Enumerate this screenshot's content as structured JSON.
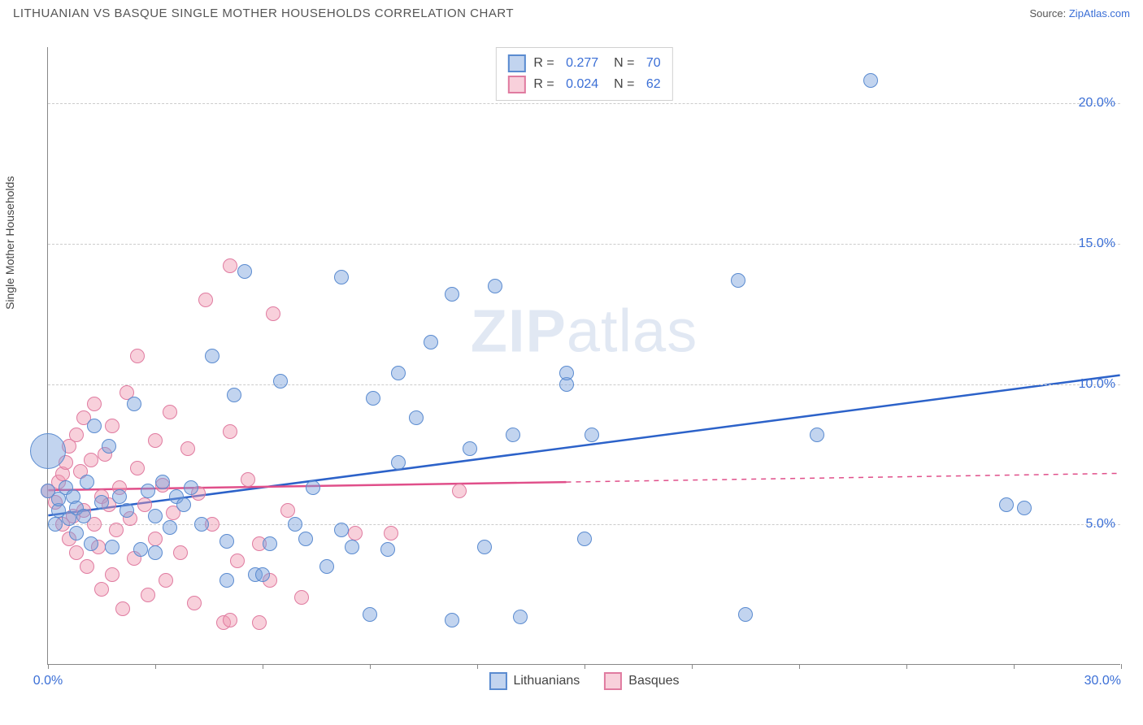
{
  "header": {
    "title": "LITHUANIAN VS BASQUE SINGLE MOTHER HOUSEHOLDS CORRELATION CHART",
    "source_prefix": "Source: ",
    "source_link": "ZipAtlas.com"
  },
  "chart": {
    "type": "scatter",
    "ylabel": "Single Mother Households",
    "watermark": {
      "bold": "ZIP",
      "rest": "atlas"
    },
    "background_color": "#ffffff",
    "grid_color": "#cccccc",
    "axis_color": "#888888",
    "xlim": [
      0,
      30
    ],
    "ylim": [
      0,
      22
    ],
    "x_ticks": [
      0,
      3,
      6,
      9,
      12,
      15,
      18,
      21,
      24,
      27,
      30
    ],
    "x_tick_labels": {
      "0": "0.0%",
      "30": "30.0%"
    },
    "y_gridlines": [
      5,
      10,
      15,
      20
    ],
    "y_tick_labels": {
      "5": "5.0%",
      "10": "10.0%",
      "15": "15.0%",
      "20": "20.0%"
    },
    "label_color": "#3b6fd6",
    "label_fontsize": 16,
    "title_fontsize": 15,
    "marker_radius": 9,
    "marker_stroke_width": 1.5,
    "marker_opacity": 0.55,
    "series": {
      "lithuanians": {
        "label": "Lithuanians",
        "color_fill": "rgba(120,160,220,0.45)",
        "color_stroke": "#5a8bd0",
        "R": "0.277",
        "N": "70",
        "regression": {
          "x1": 0,
          "y1": 5.3,
          "x2": 30,
          "y2": 10.3,
          "solid_until_x": 30,
          "color": "#2c62c9",
          "width": 2.5
        },
        "points": [
          [
            0.0,
            7.6,
            22
          ],
          [
            0.0,
            6.2
          ],
          [
            0.2,
            5.0
          ],
          [
            0.3,
            5.5
          ],
          [
            0.3,
            5.9
          ],
          [
            0.5,
            6.3
          ],
          [
            0.6,
            5.2
          ],
          [
            0.7,
            6.0
          ],
          [
            0.8,
            4.7
          ],
          [
            0.8,
            5.6
          ],
          [
            1.0,
            5.3
          ],
          [
            1.1,
            6.5
          ],
          [
            1.2,
            4.3
          ],
          [
            1.3,
            8.5
          ],
          [
            1.5,
            5.8
          ],
          [
            1.7,
            7.8
          ],
          [
            1.8,
            4.2
          ],
          [
            2.0,
            6.0
          ],
          [
            2.2,
            5.5
          ],
          [
            2.4,
            9.3
          ],
          [
            2.6,
            4.1
          ],
          [
            2.8,
            6.2
          ],
          [
            3.0,
            5.3
          ],
          [
            3.2,
            6.5
          ],
          [
            3.4,
            4.9
          ],
          [
            3.6,
            6.0
          ],
          [
            3.8,
            5.7
          ],
          [
            4.0,
            6.3
          ],
          [
            4.3,
            5.0
          ],
          [
            4.6,
            11.0
          ],
          [
            5.0,
            4.4
          ],
          [
            5.2,
            9.6
          ],
          [
            5.5,
            14.0
          ],
          [
            5.8,
            3.2
          ],
          [
            6.2,
            4.3
          ],
          [
            6.5,
            10.1
          ],
          [
            6.9,
            5.0
          ],
          [
            7.2,
            4.5
          ],
          [
            7.4,
            6.3
          ],
          [
            7.8,
            3.5
          ],
          [
            8.2,
            4.8
          ],
          [
            8.2,
            13.8
          ],
          [
            8.5,
            4.2
          ],
          [
            9.0,
            1.8
          ],
          [
            9.1,
            9.5
          ],
          [
            9.5,
            4.1
          ],
          [
            9.8,
            7.2
          ],
          [
            9.8,
            10.4
          ],
          [
            10.3,
            8.8
          ],
          [
            10.7,
            11.5
          ],
          [
            11.3,
            13.2
          ],
          [
            11.3,
            1.6
          ],
          [
            11.8,
            7.7
          ],
          [
            12.2,
            4.2
          ],
          [
            12.5,
            13.5
          ],
          [
            13.0,
            8.2
          ],
          [
            13.2,
            1.7
          ],
          [
            14.5,
            10.0
          ],
          [
            14.5,
            10.4
          ],
          [
            15.0,
            4.5
          ],
          [
            15.2,
            8.2
          ],
          [
            19.3,
            13.7
          ],
          [
            19.5,
            1.8
          ],
          [
            21.5,
            8.2
          ],
          [
            23.0,
            20.8
          ],
          [
            26.8,
            5.7
          ],
          [
            27.3,
            5.6
          ],
          [
            5.0,
            3.0
          ],
          [
            6.0,
            3.2
          ],
          [
            3.0,
            4.0
          ]
        ]
      },
      "basques": {
        "label": "Basques",
        "color_fill": "rgba(240,150,175,0.45)",
        "color_stroke": "#e07ba0",
        "R": "0.024",
        "N": "62",
        "regression": {
          "x1": 0,
          "y1": 6.2,
          "x2": 30,
          "y2": 6.8,
          "solid_until_x": 14.5,
          "color": "#e04f8a",
          "width": 2.5
        },
        "points": [
          [
            0.0,
            6.2
          ],
          [
            0.2,
            5.8
          ],
          [
            0.3,
            6.5
          ],
          [
            0.4,
            5.0
          ],
          [
            0.4,
            6.8
          ],
          [
            0.5,
            7.2
          ],
          [
            0.6,
            4.5
          ],
          [
            0.6,
            7.8
          ],
          [
            0.7,
            5.3
          ],
          [
            0.8,
            8.2
          ],
          [
            0.8,
            4.0
          ],
          [
            0.9,
            6.9
          ],
          [
            1.0,
            5.5
          ],
          [
            1.0,
            8.8
          ],
          [
            1.1,
            3.5
          ],
          [
            1.2,
            7.3
          ],
          [
            1.3,
            5.0
          ],
          [
            1.3,
            9.3
          ],
          [
            1.4,
            4.2
          ],
          [
            1.5,
            6.0
          ],
          [
            1.5,
            2.7
          ],
          [
            1.6,
            7.5
          ],
          [
            1.7,
            5.7
          ],
          [
            1.8,
            3.2
          ],
          [
            1.8,
            8.5
          ],
          [
            1.9,
            4.8
          ],
          [
            2.0,
            6.3
          ],
          [
            2.1,
            2.0
          ],
          [
            2.2,
            9.7
          ],
          [
            2.3,
            5.2
          ],
          [
            2.4,
            3.8
          ],
          [
            2.5,
            7.0
          ],
          [
            2.5,
            11.0
          ],
          [
            2.7,
            5.7
          ],
          [
            2.8,
            2.5
          ],
          [
            3.0,
            8.0
          ],
          [
            3.0,
            4.5
          ],
          [
            3.2,
            6.4
          ],
          [
            3.3,
            3.0
          ],
          [
            3.4,
            9.0
          ],
          [
            3.5,
            5.4
          ],
          [
            3.7,
            4.0
          ],
          [
            3.9,
            7.7
          ],
          [
            4.1,
            2.2
          ],
          [
            4.2,
            6.1
          ],
          [
            4.4,
            13.0
          ],
          [
            4.6,
            5.0
          ],
          [
            4.9,
            1.5
          ],
          [
            5.1,
            8.3
          ],
          [
            5.1,
            1.6
          ],
          [
            5.1,
            14.2
          ],
          [
            5.3,
            3.7
          ],
          [
            5.6,
            6.6
          ],
          [
            5.9,
            4.3
          ],
          [
            5.9,
            1.5
          ],
          [
            6.2,
            3.0
          ],
          [
            6.3,
            12.5
          ],
          [
            6.7,
            5.5
          ],
          [
            7.1,
            2.4
          ],
          [
            8.6,
            4.7
          ],
          [
            9.6,
            4.7
          ],
          [
            11.5,
            6.2
          ]
        ]
      }
    },
    "legend_bottom": [
      {
        "label": "Lithuanians",
        "fill": "rgba(120,160,220,0.45)",
        "stroke": "#5a8bd0"
      },
      {
        "label": "Basques",
        "fill": "rgba(240,150,175,0.45)",
        "stroke": "#e07ba0"
      }
    ]
  }
}
